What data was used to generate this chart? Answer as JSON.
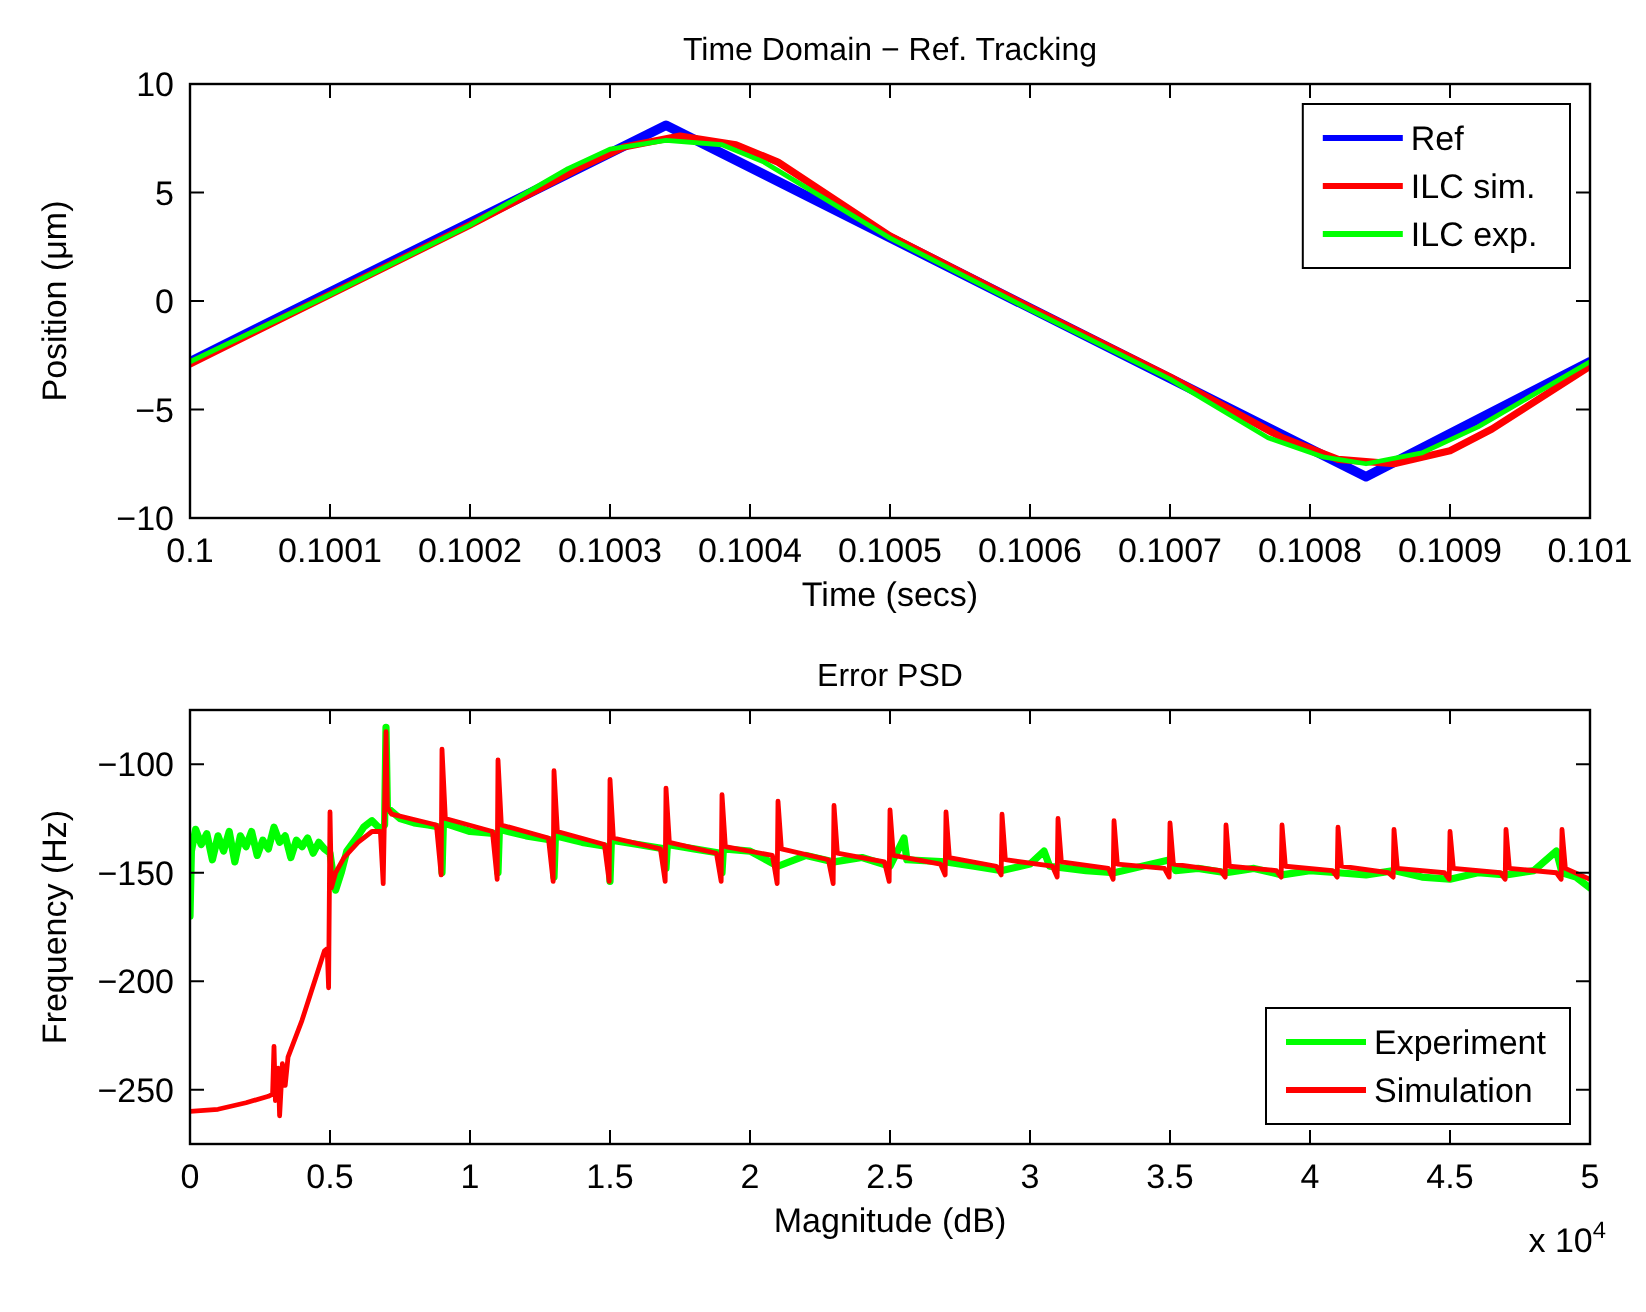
{
  "chart_data": [
    {
      "type": "line",
      "title": "Time Domain − Ref. Tracking",
      "xlabel": "Time (secs)",
      "ylabel": "Position (μm)",
      "xlim": [
        0.1,
        0.101
      ],
      "ylim": [
        -10,
        10
      ],
      "xticks": [
        0.1,
        0.1001,
        0.1002,
        0.1003,
        0.1004,
        0.1005,
        0.1006,
        0.1007,
        0.1008,
        0.1009,
        0.101
      ],
      "yticks": [
        -10,
        -5,
        0,
        5,
        10
      ],
      "grid": false,
      "legend": "top right",
      "line_style": "solid",
      "series": [
        {
          "name": "Ref",
          "color": "#0000ff",
          "x": [
            0.1,
            0.10034,
            0.10084,
            0.101
          ],
          "values": [
            -2.8,
            8.1,
            -8.1,
            -2.8
          ]
        },
        {
          "name": "ILC sim.",
          "color": "#ff0000",
          "x": [
            0.1,
            0.1001,
            0.1002,
            0.10028,
            0.10031,
            0.10035,
            0.10039,
            0.10042,
            0.1005,
            0.1006,
            0.1007,
            0.10078,
            0.10082,
            0.10086,
            0.1009,
            0.10093,
            0.101
          ],
          "values": [
            -2.9,
            0.3,
            3.5,
            6.2,
            7.1,
            7.6,
            7.2,
            6.4,
            3.0,
            -0.3,
            -3.5,
            -6.3,
            -7.3,
            -7.5,
            -6.9,
            -5.9,
            -3.0
          ]
        },
        {
          "name": "ILC exp.",
          "color": "#00ff00",
          "x": [
            0.1,
            0.1001,
            0.1002,
            0.10027,
            0.1003,
            0.10034,
            0.10038,
            0.10041,
            0.1005,
            0.1006,
            0.1007,
            0.10077,
            0.10081,
            0.10084,
            0.10088,
            0.10092,
            0.101
          ],
          "values": [
            -2.8,
            0.3,
            3.5,
            6.1,
            7.0,
            7.4,
            7.2,
            6.4,
            2.9,
            -0.4,
            -3.6,
            -6.3,
            -7.2,
            -7.5,
            -7.0,
            -5.8,
            -2.8
          ]
        }
      ]
    },
    {
      "type": "line",
      "title": "Error PSD",
      "xlabel": "Magnitude (dB)",
      "ylabel": "Frequency (Hz)",
      "xlim": [
        0,
        5
      ],
      "ylim": [
        -275,
        -75
      ],
      "xticks": [
        0,
        0.5,
        1,
        1.5,
        2,
        2.5,
        3,
        3.5,
        4,
        4.5,
        5
      ],
      "yticks": [
        -250,
        -200,
        -150,
        -100
      ],
      "grid": false,
      "legend": "bottom right",
      "line_style": "solid",
      "annotations": [
        "x 10$^{4}$"
      ],
      "series": [
        {
          "name": "Experiment",
          "color": "#00ff00",
          "x": [
            0,
            0.005,
            0.02,
            0.04,
            0.06,
            0.08,
            0.1,
            0.12,
            0.14,
            0.16,
            0.18,
            0.2,
            0.22,
            0.24,
            0.26,
            0.28,
            0.3,
            0.32,
            0.34,
            0.36,
            0.38,
            0.4,
            0.42,
            0.44,
            0.46,
            0.48,
            0.5,
            0.51,
            0.52,
            0.54,
            0.56,
            0.6,
            0.62,
            0.65,
            0.68,
            0.695,
            0.7,
            0.705,
            0.75,
            0.8,
            0.85,
            0.895,
            0.9,
            0.905,
            1.0,
            1.095,
            1.1,
            1.105,
            1.2,
            1.295,
            1.3,
            1.305,
            1.4,
            1.495,
            1.5,
            1.505,
            1.6,
            1.695,
            1.7,
            1.705,
            1.8,
            1.895,
            1.9,
            1.905,
            2.0,
            2.1,
            2.2,
            2.3,
            2.4,
            2.5,
            2.55,
            2.56,
            2.7,
            2.8,
            2.9,
            3.0,
            3.05,
            3.07,
            3.2,
            3.3,
            3.4,
            3.5,
            3.52,
            3.6,
            3.7,
            3.8,
            3.9,
            4.0,
            4.1,
            4.2,
            4.3,
            4.4,
            4.5,
            4.6,
            4.7,
            4.8,
            4.88,
            4.9,
            4.95,
            5.0
          ],
          "values": [
            -170,
            -140,
            -130,
            -137,
            -132,
            -144,
            -133,
            -140,
            -131,
            -145,
            -133,
            -138,
            -131,
            -142,
            -135,
            -139,
            -129,
            -136,
            -133,
            -143,
            -135,
            -138,
            -134,
            -141,
            -136,
            -139,
            -141,
            -150,
            -158,
            -150,
            -140,
            -133,
            -129,
            -126,
            -130,
            -128,
            -83,
            -120,
            -125,
            -127,
            -128,
            -129,
            -150,
            -127,
            -131,
            -132,
            -150,
            -130,
            -133,
            -135,
            -152,
            -133,
            -136,
            -138,
            -154,
            -135,
            -137,
            -139,
            -148,
            -137,
            -139,
            -141,
            -150,
            -139,
            -140,
            -147,
            -142,
            -145,
            -143,
            -147,
            -134,
            -144,
            -145,
            -147,
            -149,
            -146,
            -140,
            -147,
            -149,
            -150,
            -147,
            -144,
            -149,
            -148,
            -150,
            -148,
            -151,
            -149,
            -150,
            -151,
            -149,
            -152,
            -153,
            -150,
            -151,
            -149,
            -140,
            -150,
            -152,
            -157
          ]
        },
        {
          "name": "Simulation",
          "color": "#ff0000",
          "x": [
            0,
            0.1,
            0.2,
            0.28,
            0.295,
            0.3,
            0.305,
            0.315,
            0.32,
            0.33,
            0.34,
            0.35,
            0.4,
            0.45,
            0.48,
            0.49,
            0.495,
            0.5,
            0.505,
            0.52,
            0.55,
            0.6,
            0.65,
            0.68,
            0.69,
            0.7,
            0.705,
            0.72,
            0.88,
            0.897,
            0.9,
            0.912,
            1.08,
            1.097,
            1.1,
            1.112,
            1.28,
            1.297,
            1.3,
            1.312,
            1.48,
            1.497,
            1.5,
            1.512,
            1.68,
            1.697,
            1.7,
            1.712,
            1.88,
            1.897,
            1.9,
            1.912,
            2.08,
            2.097,
            2.1,
            2.112,
            2.28,
            2.297,
            2.3,
            2.312,
            2.48,
            2.497,
            2.5,
            2.512,
            2.68,
            2.697,
            2.7,
            2.712,
            2.88,
            2.897,
            2.9,
            2.912,
            3.08,
            3.097,
            3.1,
            3.112,
            3.28,
            3.297,
            3.3,
            3.312,
            3.48,
            3.497,
            3.5,
            3.512,
            3.68,
            3.697,
            3.7,
            3.712,
            3.88,
            3.897,
            3.9,
            3.912,
            4.08,
            4.097,
            4.1,
            4.112,
            4.28,
            4.297,
            4.3,
            4.312,
            4.48,
            4.497,
            4.5,
            4.512,
            4.68,
            4.697,
            4.7,
            4.712,
            4.88,
            4.897,
            4.9,
            4.912,
            5.0
          ],
          "values": [
            -260,
            -259,
            -256,
            -253,
            -252,
            -230,
            -255,
            -240,
            -262,
            -238,
            -248,
            -235,
            -218,
            -198,
            -186,
            -185,
            -203,
            -122,
            -157,
            -150,
            -143,
            -136,
            -131,
            -131,
            -155,
            -85,
            -120,
            -123,
            -128,
            -151,
            -93,
            -125,
            -131,
            -153,
            -98,
            -128,
            -134,
            -154,
            -103,
            -131,
            -137,
            -154,
            -107,
            -134,
            -139,
            -154,
            -111,
            -136,
            -141,
            -154,
            -114,
            -138,
            -142,
            -155,
            -117,
            -139,
            -144,
            -155,
            -119,
            -141,
            -145,
            -154,
            -121,
            -142,
            -146,
            -151,
            -122,
            -143,
            -147,
            -151,
            -123,
            -144,
            -147,
            -152,
            -125,
            -145,
            -148,
            -153,
            -126,
            -146,
            -148,
            -152,
            -127,
            -146,
            -149,
            -152,
            -128,
            -147,
            -149,
            -152,
            -128,
            -147,
            -149,
            -152,
            -129,
            -147,
            -150,
            -152,
            -130,
            -148,
            -150,
            -153,
            -131,
            -148,
            -150,
            -153,
            -130,
            -148,
            -150,
            -153,
            -130,
            -148,
            -153
          ]
        }
      ]
    }
  ]
}
